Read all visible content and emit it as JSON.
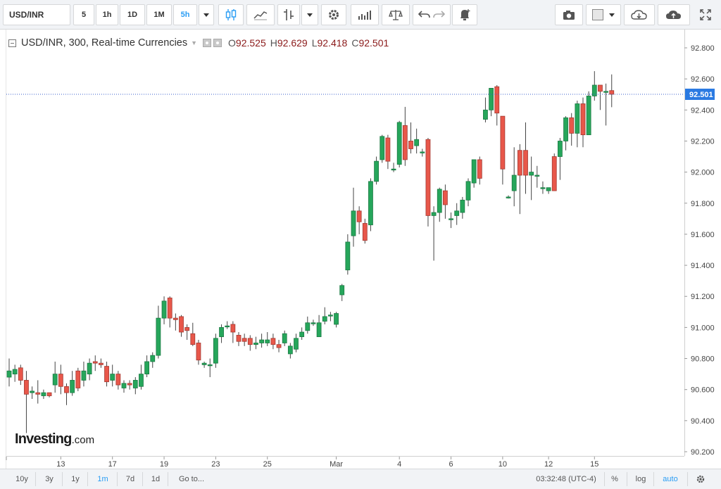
{
  "toolbar": {
    "symbol": "USD/INR",
    "intervals": [
      "5",
      "1h",
      "1D",
      "1M",
      "5h"
    ],
    "active_interval": "5h",
    "icons": [
      "candles-icon",
      "indicators-icon",
      "drawing-icon",
      "settings-icon",
      "studies-icon",
      "compare-icon",
      "undo-icon",
      "redo-icon",
      "alert-icon",
      "camera-icon",
      "color-icon",
      "cloud-download-icon",
      "cloud-upload-icon",
      "fullscreen-icon"
    ]
  },
  "legend": {
    "title": "USD/INR, 300, Real-time Currencies",
    "o_label": "O",
    "o_value": "92.525",
    "h_label": "H",
    "h_value": "92.629",
    "l_label": "L",
    "l_value": "92.418",
    "c_label": "C",
    "c_value": "92.501"
  },
  "logo": {
    "text": "Investing",
    "suffix": ".com"
  },
  "bottombar": {
    "ranges": [
      "10y",
      "3y",
      "1y",
      "1m",
      "7d",
      "1d"
    ],
    "active_range": "1m",
    "goto": "Go to...",
    "time": "03:32:48 (UTC-4)",
    "percent": "%",
    "log": "log",
    "auto": "auto"
  },
  "colors": {
    "up": "#26a65b",
    "down": "#e8574a",
    "last_price_line": "#3a5fcd",
    "last_price_bg": "#2a7ae2",
    "active": "#2a9df4"
  },
  "chart_data": {
    "type": "candlestick",
    "ylim": [
      90.2,
      92.9
    ],
    "y_ticks": [
      "92.800",
      "92.600",
      "92.400",
      "92.200",
      "92.000",
      "91.800",
      "91.600",
      "91.400",
      "91.200",
      "91.000",
      "90.800",
      "90.600",
      "90.400",
      "90.200"
    ],
    "x_ticks": [
      {
        "label": "13",
        "i": 9
      },
      {
        "label": "17",
        "i": 18
      },
      {
        "label": "19",
        "i": 27
      },
      {
        "label": "23",
        "i": 36
      },
      {
        "label": "25",
        "i": 45
      },
      {
        "label": "Mar",
        "i": 57
      },
      {
        "label": "4",
        "i": 68
      },
      {
        "label": "6",
        "i": 77
      },
      {
        "label": "10",
        "i": 86
      },
      {
        "label": "12",
        "i": 94
      },
      {
        "label": "15",
        "i": 102
      }
    ],
    "last_price": "92.501",
    "candles": [
      [
        90.68,
        90.72,
        90.62,
        90.8
      ],
      [
        90.7,
        90.73,
        90.65,
        90.76
      ],
      [
        90.74,
        90.66,
        90.63,
        90.76
      ],
      [
        90.66,
        90.57,
        90.32,
        90.72
      ],
      [
        90.58,
        90.59,
        90.54,
        90.62
      ],
      [
        90.58,
        90.57,
        90.51,
        90.66
      ],
      [
        90.56,
        90.58,
        90.54,
        90.6
      ],
      [
        90.58,
        90.56,
        90.55,
        90.58
      ],
      [
        90.63,
        90.7,
        90.58,
        90.78
      ],
      [
        90.7,
        90.62,
        90.57,
        90.76
      ],
      [
        90.62,
        90.58,
        90.5,
        90.64
      ],
      [
        90.58,
        90.66,
        90.56,
        90.72
      ],
      [
        90.72,
        90.61,
        90.59,
        90.74
      ],
      [
        90.66,
        90.72,
        90.62,
        90.78
      ],
      [
        90.7,
        90.77,
        90.66,
        90.8
      ],
      [
        90.78,
        90.77,
        90.72,
        90.82
      ],
      [
        90.77,
        90.76,
        90.74,
        90.8
      ],
      [
        90.75,
        90.65,
        90.62,
        90.78
      ],
      [
        90.66,
        90.7,
        90.62,
        90.76
      ],
      [
        90.7,
        90.63,
        90.6,
        90.72
      ],
      [
        90.61,
        90.64,
        90.58,
        90.66
      ],
      [
        90.64,
        90.63,
        90.6,
        90.66
      ],
      [
        90.61,
        90.66,
        90.57,
        90.68
      ],
      [
        90.62,
        90.7,
        90.6,
        90.76
      ],
      [
        90.7,
        90.78,
        90.68,
        90.82
      ],
      [
        90.78,
        90.82,
        90.74,
        90.84
      ],
      [
        90.82,
        91.06,
        90.8,
        91.14
      ],
      [
        91.06,
        91.17,
        91.02,
        91.2
      ],
      [
        91.19,
        91.06,
        91.0,
        91.2
      ],
      [
        91.06,
        91.05,
        90.98,
        91.09
      ],
      [
        91.07,
        90.97,
        90.94,
        91.08
      ],
      [
        91.0,
        90.98,
        90.92,
        91.02
      ],
      [
        90.96,
        90.89,
        90.88,
        91.03
      ],
      [
        90.9,
        90.79,
        90.76,
        90.92
      ],
      [
        90.76,
        90.77,
        90.74,
        90.78
      ],
      [
        90.76,
        90.76,
        90.68,
        90.8
      ],
      [
        90.77,
        90.93,
        90.74,
        90.96
      ],
      [
        90.94,
        91.0,
        90.9,
        91.02
      ],
      [
        91.01,
        91.01,
        90.99,
        91.04
      ],
      [
        91.02,
        90.97,
        90.9,
        91.04
      ],
      [
        90.95,
        90.91,
        90.88,
        90.97
      ],
      [
        90.93,
        90.91,
        90.88,
        90.96
      ],
      [
        90.93,
        90.89,
        90.85,
        90.95
      ],
      [
        90.89,
        90.9,
        90.86,
        90.94
      ],
      [
        90.9,
        90.92,
        90.87,
        90.96
      ],
      [
        90.9,
        90.92,
        90.88,
        90.97
      ],
      [
        90.93,
        90.89,
        90.86,
        90.96
      ],
      [
        90.89,
        90.87,
        90.84,
        90.92
      ],
      [
        90.9,
        90.96,
        90.88,
        90.98
      ],
      [
        90.83,
        90.88,
        90.8,
        90.9
      ],
      [
        90.86,
        90.93,
        90.84,
        90.96
      ],
      [
        90.94,
        90.97,
        90.92,
        91.0
      ],
      [
        90.98,
        91.03,
        90.96,
        91.07
      ],
      [
        91.03,
        91.03,
        91.01,
        91.05
      ],
      [
        90.94,
        91.03,
        90.94,
        91.08
      ],
      [
        91.04,
        91.07,
        91.02,
        91.13
      ],
      [
        91.08,
        91.08,
        91.04,
        91.1
      ],
      [
        91.02,
        91.09,
        91.0,
        91.1
      ],
      [
        91.21,
        91.27,
        91.17,
        91.28
      ],
      [
        91.37,
        91.55,
        91.34,
        91.6
      ],
      [
        91.59,
        91.75,
        91.52,
        91.9
      ],
      [
        91.75,
        91.68,
        91.6,
        91.78
      ],
      [
        91.67,
        91.56,
        91.54,
        91.7
      ],
      [
        91.66,
        91.94,
        91.62,
        91.96
      ],
      [
        91.94,
        92.07,
        91.92,
        92.1
      ],
      [
        92.08,
        92.23,
        92.06,
        92.24
      ],
      [
        92.22,
        92.07,
        92.02,
        92.24
      ],
      [
        92.02,
        92.02,
        92.0,
        92.06
      ],
      [
        92.05,
        92.32,
        92.03,
        92.33
      ],
      [
        92.3,
        92.08,
        92.04,
        92.42
      ],
      [
        92.2,
        92.15,
        92.12,
        92.32
      ],
      [
        92.17,
        92.21,
        92.12,
        92.28
      ],
      [
        92.13,
        92.13,
        92.1,
        92.15
      ],
      [
        92.21,
        91.72,
        91.65,
        92.22
      ],
      [
        91.72,
        91.74,
        91.43,
        91.78
      ],
      [
        91.74,
        91.89,
        91.68,
        91.9
      ],
      [
        91.88,
        91.79,
        91.7,
        91.92
      ],
      [
        91.7,
        91.7,
        91.64,
        91.74
      ],
      [
        91.72,
        91.75,
        91.66,
        91.8
      ],
      [
        91.74,
        91.82,
        91.7,
        91.84
      ],
      [
        91.82,
        91.94,
        91.78,
        91.96
      ],
      [
        91.93,
        92.08,
        91.9,
        92.08
      ],
      [
        92.08,
        91.96,
        91.92,
        92.1
      ],
      [
        92.34,
        92.4,
        92.32,
        92.48
      ],
      [
        92.4,
        92.54,
        92.36,
        92.54
      ],
      [
        92.55,
        92.38,
        92.3,
        92.56
      ],
      [
        92.36,
        92.02,
        91.92,
        92.36
      ],
      [
        91.84,
        91.84,
        91.83,
        91.85
      ],
      [
        91.88,
        91.98,
        91.78,
        92.16
      ],
      [
        92.14,
        91.98,
        91.73,
        92.18
      ],
      [
        92.14,
        91.98,
        91.86,
        92.32
      ],
      [
        91.98,
        92.0,
        91.82,
        92.1
      ],
      [
        91.98,
        91.98,
        91.9,
        92.04
      ],
      [
        91.9,
        91.9,
        91.86,
        91.94
      ],
      [
        91.88,
        91.9,
        91.86,
        91.9
      ],
      [
        92.1,
        91.88,
        91.88,
        92.12
      ],
      [
        92.1,
        92.2,
        91.95,
        92.22
      ],
      [
        92.2,
        92.35,
        92.14,
        92.36
      ],
      [
        92.35,
        92.25,
        92.17,
        92.38
      ],
      [
        92.25,
        92.44,
        92.16,
        92.46
      ],
      [
        92.44,
        92.24,
        92.16,
        92.48
      ],
      [
        92.24,
        92.49,
        92.24,
        92.52
      ],
      [
        92.49,
        92.56,
        92.46,
        92.65
      ],
      [
        92.56,
        92.52,
        92.4,
        92.56
      ],
      [
        92.52,
        92.52,
        92.3,
        92.57
      ],
      [
        92.525,
        92.501,
        92.418,
        92.629
      ]
    ]
  }
}
